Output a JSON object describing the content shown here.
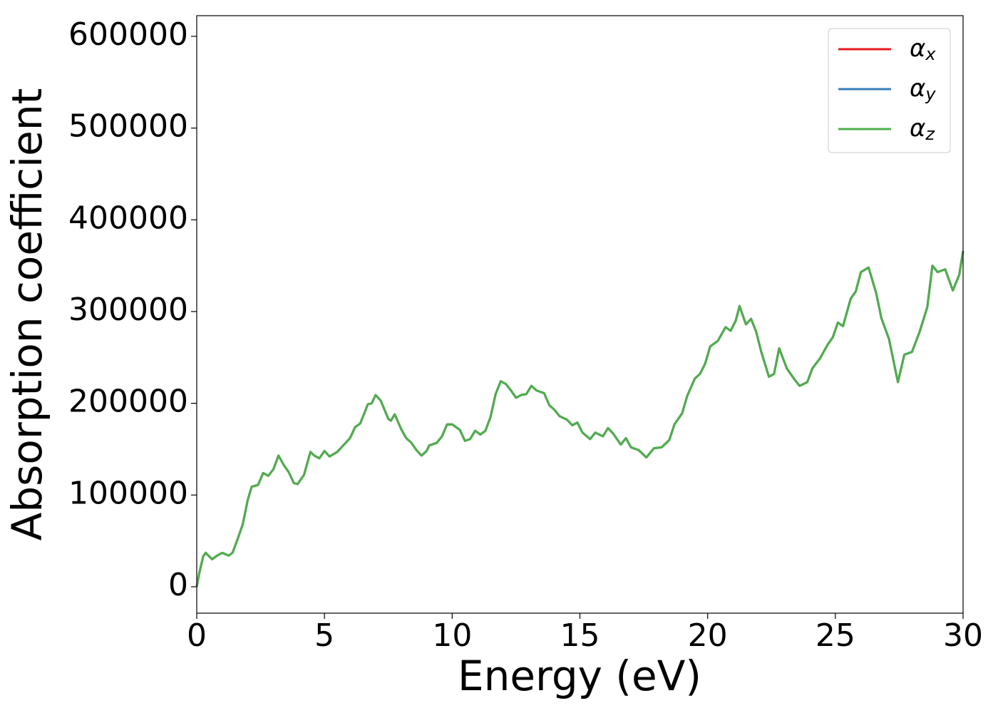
{
  "chart_data": {
    "type": "line",
    "xlabel": "Energy (eV)",
    "ylabel": "Absorption coefficient",
    "x": [
      0,
      0.1,
      0.25,
      0.35,
      0.6,
      0.8,
      1.0,
      1.25,
      1.4,
      1.6,
      1.8,
      2.0,
      2.15,
      2.4,
      2.6,
      2.8,
      3.0,
      3.2,
      3.4,
      3.6,
      3.8,
      3.95,
      4.2,
      4.45,
      4.6,
      4.8,
      5.0,
      5.2,
      5.5,
      5.8,
      6.0,
      6.2,
      6.4,
      6.7,
      6.85,
      7.0,
      7.2,
      7.5,
      7.6,
      7.75,
      8.0,
      8.2,
      8.4,
      8.6,
      8.8,
      9.0,
      9.1,
      9.4,
      9.6,
      9.8,
      10.0,
      10.3,
      10.5,
      10.7,
      10.9,
      11.1,
      11.3,
      11.5,
      11.7,
      11.9,
      12.1,
      12.3,
      12.5,
      12.7,
      12.9,
      13.1,
      13.3,
      13.6,
      13.8,
      14.0,
      14.2,
      14.5,
      14.7,
      14.9,
      15.1,
      15.4,
      15.6,
      15.9,
      16.1,
      16.3,
      16.6,
      16.8,
      17.0,
      17.3,
      17.6,
      17.9,
      18.2,
      18.5,
      18.7,
      19.0,
      19.2,
      19.5,
      19.7,
      19.9,
      20.1,
      20.4,
      20.7,
      20.9,
      21.1,
      21.25,
      21.5,
      21.7,
      21.9,
      22.1,
      22.4,
      22.6,
      22.8,
      23.1,
      23.4,
      23.6,
      23.9,
      24.1,
      24.4,
      24.7,
      24.9,
      25.1,
      25.3,
      25.6,
      25.8,
      26.0,
      26.3,
      26.6,
      26.8,
      27.1,
      27.3,
      27.45,
      27.7,
      28.0,
      28.3,
      28.6,
      28.8,
      29.0,
      29.3,
      29.6,
      29.85,
      30.0
    ],
    "series": [
      {
        "name": "αx",
        "color": "#e41a1c",
        "values": [
          0,
          15000,
          33000,
          37000,
          30000,
          34000,
          37000,
          34000,
          37000,
          52000,
          68000,
          95000,
          109000,
          111000,
          124000,
          121000,
          128000,
          143000,
          133000,
          125000,
          113000,
          112000,
          122000,
          147000,
          143000,
          140000,
          148000,
          142000,
          147000,
          156000,
          162000,
          174000,
          178000,
          199000,
          200000,
          209000,
          203000,
          183000,
          181000,
          188000,
          172000,
          162000,
          157000,
          149000,
          143000,
          148000,
          154000,
          157000,
          164000,
          177000,
          177000,
          171000,
          159000,
          161000,
          170000,
          166000,
          170000,
          185000,
          210000,
          224000,
          221000,
          214000,
          206000,
          209000,
          210000,
          219000,
          214000,
          211000,
          198000,
          193000,
          186000,
          182000,
          176000,
          179000,
          168000,
          161000,
          168000,
          164000,
          173000,
          167000,
          155000,
          162000,
          152000,
          149000,
          141000,
          151000,
          152000,
          160000,
          177000,
          189000,
          208000,
          227000,
          232000,
          243000,
          262000,
          268000,
          283000,
          279000,
          290000,
          306000,
          286000,
          292000,
          278000,
          256000,
          229000,
          232000,
          260000,
          238000,
          226000,
          219000,
          223000,
          238000,
          249000,
          264000,
          272000,
          288000,
          284000,
          314000,
          322000,
          343000,
          348000,
          320000,
          293000,
          270000,
          243000,
          223000,
          253000,
          256000,
          278000,
          305000,
          350000,
          343000,
          346000,
          323000,
          340000,
          366000
        ]
      },
      {
        "name": "αy",
        "color": "#377eb8",
        "values": [
          0,
          15000,
          33000,
          37000,
          30000,
          34000,
          37000,
          34000,
          37000,
          52000,
          68000,
          95000,
          109000,
          111000,
          124000,
          121000,
          128000,
          143000,
          133000,
          125000,
          113000,
          112000,
          122000,
          147000,
          143000,
          140000,
          148000,
          142000,
          147000,
          156000,
          162000,
          174000,
          178000,
          199000,
          200000,
          209000,
          203000,
          183000,
          181000,
          188000,
          172000,
          162000,
          157000,
          149000,
          143000,
          148000,
          154000,
          157000,
          164000,
          177000,
          177000,
          171000,
          159000,
          161000,
          170000,
          166000,
          170000,
          185000,
          210000,
          224000,
          221000,
          214000,
          206000,
          209000,
          210000,
          219000,
          214000,
          211000,
          198000,
          193000,
          186000,
          182000,
          176000,
          179000,
          168000,
          161000,
          168000,
          164000,
          173000,
          167000,
          155000,
          162000,
          152000,
          149000,
          141000,
          151000,
          152000,
          160000,
          177000,
          189000,
          208000,
          227000,
          232000,
          243000,
          262000,
          268000,
          283000,
          279000,
          290000,
          306000,
          286000,
          292000,
          278000,
          256000,
          229000,
          232000,
          260000,
          238000,
          226000,
          219000,
          223000,
          238000,
          249000,
          264000,
          272000,
          288000,
          284000,
          314000,
          322000,
          343000,
          348000,
          320000,
          293000,
          270000,
          243000,
          223000,
          253000,
          256000,
          278000,
          305000,
          350000,
          343000,
          346000,
          323000,
          340000,
          366000
        ]
      },
      {
        "name": "αz",
        "color": "#4daf4a",
        "values": [
          0,
          15000,
          33000,
          37000,
          30000,
          34000,
          37000,
          34000,
          37000,
          52000,
          68000,
          95000,
          109000,
          111000,
          124000,
          121000,
          128000,
          143000,
          133000,
          125000,
          113000,
          112000,
          122000,
          147000,
          143000,
          140000,
          148000,
          142000,
          147000,
          156000,
          162000,
          174000,
          178000,
          199000,
          200000,
          209000,
          203000,
          183000,
          181000,
          188000,
          172000,
          162000,
          157000,
          149000,
          143000,
          148000,
          154000,
          157000,
          164000,
          177000,
          177000,
          171000,
          159000,
          161000,
          170000,
          166000,
          170000,
          185000,
          210000,
          224000,
          221000,
          214000,
          206000,
          209000,
          210000,
          219000,
          214000,
          211000,
          198000,
          193000,
          186000,
          182000,
          176000,
          179000,
          168000,
          161000,
          168000,
          164000,
          173000,
          167000,
          155000,
          162000,
          152000,
          149000,
          141000,
          151000,
          152000,
          160000,
          177000,
          189000,
          208000,
          227000,
          232000,
          243000,
          262000,
          268000,
          283000,
          279000,
          290000,
          306000,
          286000,
          292000,
          278000,
          256000,
          229000,
          232000,
          260000,
          238000,
          226000,
          219000,
          223000,
          238000,
          249000,
          264000,
          272000,
          288000,
          284000,
          314000,
          322000,
          343000,
          348000,
          320000,
          293000,
          270000,
          243000,
          223000,
          253000,
          256000,
          278000,
          305000,
          350000,
          343000,
          346000,
          323000,
          340000,
          366000
        ]
      }
    ],
    "xlim": [
      0,
      30
    ],
    "xticks": [
      0,
      5,
      10,
      15,
      20,
      25,
      30
    ],
    "ylim": [
      -28800,
      622500
    ],
    "yticks": [
      0,
      100000,
      200000,
      300000,
      400000,
      500000,
      600000
    ],
    "legend": "upper right",
    "grid": false
  }
}
